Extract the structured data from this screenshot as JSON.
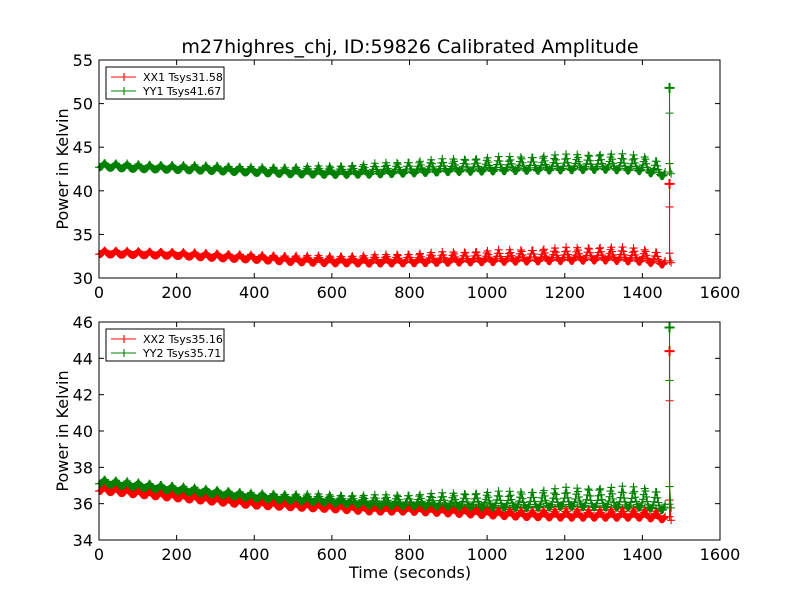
{
  "chart_data": [
    {
      "type": "line",
      "title": "m27highres_chj, ID:59826 Calibrated Amplitude",
      "xlabel": "",
      "ylabel": "Power in Kelvin",
      "xlim": [
        0,
        1600
      ],
      "ylim": [
        30,
        55
      ],
      "xticks": [
        "0",
        "200",
        "400",
        "600",
        "800",
        "1000",
        "1200",
        "1400",
        "1600"
      ],
      "yticks": [
        "30",
        "35",
        "40",
        "45",
        "50",
        "55"
      ],
      "legend": "top-left",
      "marker": "+",
      "series": [
        {
          "name": "XX1 Tsys31.58",
          "color": "#ff0000",
          "x": [
            0,
            100,
            200,
            300,
            400,
            500,
            600,
            700,
            800,
            900,
            1000,
            1100,
            1200,
            1300,
            1400,
            1460
          ],
          "y": [
            32.9,
            32.8,
            32.7,
            32.5,
            32.3,
            32.1,
            32.0,
            32.0,
            32.1,
            32.2,
            32.3,
            32.4,
            32.5,
            32.6,
            32.4,
            32.0
          ],
          "spike": {
            "x": 1470,
            "y": 40.8
          },
          "oscillation": [
            0.5,
            0.5,
            0.5,
            0.6,
            0.6,
            0.8,
            0.9,
            1.0,
            1.2,
            1.3,
            1.4,
            1.5,
            1.6,
            1.7,
            1.6,
            1.5
          ]
        },
        {
          "name": "YY1 Tsys41.67",
          "color": "#008000",
          "x": [
            0,
            100,
            200,
            300,
            400,
            500,
            600,
            700,
            800,
            900,
            1000,
            1100,
            1200,
            1300,
            1400,
            1460
          ],
          "y": [
            42.9,
            42.7,
            42.6,
            42.5,
            42.3,
            42.2,
            42.2,
            42.3,
            42.5,
            42.7,
            42.8,
            42.9,
            43.0,
            43.1,
            42.9,
            42.2
          ],
          "spike": {
            "x": 1470,
            "y": 51.8
          },
          "oscillation": [
            0.6,
            0.6,
            0.6,
            0.7,
            0.7,
            0.9,
            1.1,
            1.3,
            1.5,
            1.6,
            1.7,
            1.8,
            1.9,
            2.0,
            1.9,
            1.8
          ]
        }
      ]
    },
    {
      "type": "line",
      "title": "",
      "xlabel": "Time (seconds)",
      "ylabel": "Power in Kelvin",
      "xlim": [
        0,
        1600
      ],
      "ylim": [
        34,
        46
      ],
      "xticks": [
        "0",
        "200",
        "400",
        "600",
        "800",
        "1000",
        "1200",
        "1400",
        "1600"
      ],
      "yticks": [
        "34",
        "36",
        "38",
        "40",
        "42",
        "44",
        "46"
      ],
      "legend": "top-left",
      "marker": "+",
      "series": [
        {
          "name": "XX2 Tsys35.16",
          "color": "#ff0000",
          "x": [
            0,
            100,
            200,
            300,
            400,
            500,
            600,
            700,
            800,
            900,
            1000,
            1100,
            1200,
            1300,
            1400,
            1460
          ],
          "y": [
            36.8,
            36.6,
            36.4,
            36.2,
            36.0,
            35.9,
            35.8,
            35.7,
            35.7,
            35.6,
            35.5,
            35.4,
            35.4,
            35.4,
            35.4,
            35.3
          ],
          "spike": {
            "x": 1470,
            "y": 44.4
          },
          "oscillation": [
            0.3,
            0.3,
            0.3,
            0.3,
            0.3,
            0.3,
            0.3,
            0.4,
            0.4,
            0.4,
            0.4,
            0.4,
            0.5,
            0.5,
            0.5,
            0.5
          ]
        },
        {
          "name": "YY2 Tsys35.71",
          "color": "#008000",
          "x": [
            0,
            100,
            200,
            300,
            400,
            500,
            600,
            700,
            800,
            900,
            1000,
            1100,
            1200,
            1300,
            1400,
            1460
          ],
          "y": [
            37.2,
            37.0,
            36.8,
            36.6,
            36.4,
            36.3,
            36.2,
            36.1,
            36.1,
            36.1,
            36.1,
            36.1,
            36.2,
            36.2,
            36.2,
            36.0
          ],
          "spike": {
            "x": 1470,
            "y": 45.7
          },
          "oscillation": [
            0.3,
            0.3,
            0.3,
            0.3,
            0.3,
            0.4,
            0.5,
            0.6,
            0.7,
            0.8,
            0.9,
            1.0,
            1.1,
            1.2,
            1.2,
            1.1
          ]
        }
      ]
    }
  ]
}
